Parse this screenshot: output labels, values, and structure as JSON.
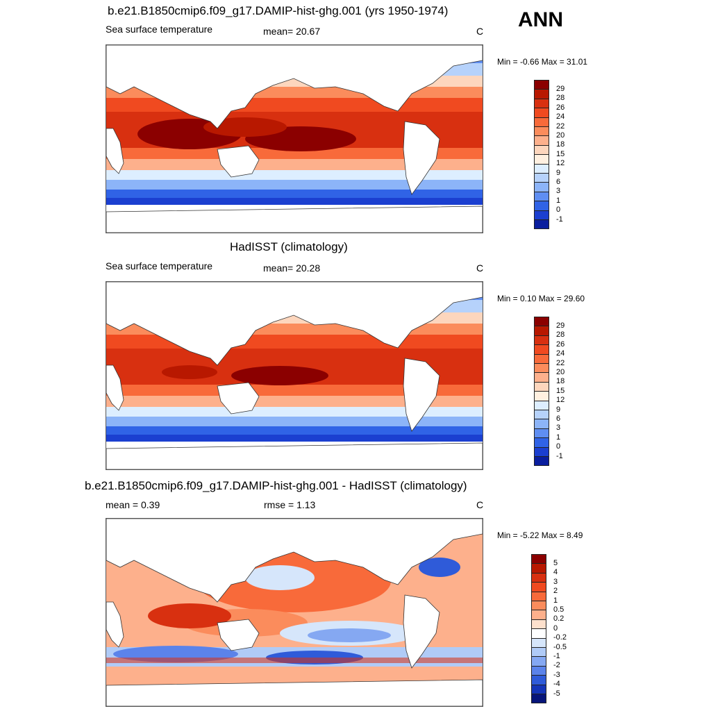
{
  "season": "ANN",
  "panels": [
    {
      "id": "model",
      "title": "b.e21.B1850cmip6.f09_g17.DAMIP-hist-ghg.001 (yrs 1950-1974)",
      "left_label": "Sea surface temperature",
      "mid_label": "mean=  20.67",
      "units": "C",
      "minmax": "Min =  -0.66 Max =  31.01",
      "levels": [
        "29",
        "28",
        "26",
        "24",
        "22",
        "20",
        "18",
        "15",
        "12",
        "9",
        "6",
        "3",
        "1",
        "0",
        "-1"
      ],
      "colors": [
        "#8b0000",
        "#b81800",
        "#d83010",
        "#f04a20",
        "#f86a3a",
        "#fb8c5c",
        "#fdb08c",
        "#fdd6bd",
        "#fff0e0",
        "#ddeeff",
        "#b6d2fb",
        "#8cb4f8",
        "#5f8ef2",
        "#3063e6",
        "#1b3fd0",
        "#0a1e9e"
      ]
    },
    {
      "id": "obs",
      "title": "HadISST (climatology)",
      "left_label": "Sea surface temperature",
      "mid_label": "mean=  20.28",
      "units": "C",
      "minmax": "Min =   0.10 Max =  29.60",
      "levels": [
        "29",
        "28",
        "26",
        "24",
        "22",
        "20",
        "18",
        "15",
        "12",
        "9",
        "6",
        "3",
        "1",
        "0",
        "-1"
      ],
      "colors": [
        "#8b0000",
        "#b81800",
        "#d83010",
        "#f04a20",
        "#f86a3a",
        "#fb8c5c",
        "#fdb08c",
        "#fdd6bd",
        "#fff0e0",
        "#ddeeff",
        "#b6d2fb",
        "#8cb4f8",
        "#5f8ef2",
        "#3063e6",
        "#1b3fd0",
        "#0a1e9e"
      ]
    },
    {
      "id": "diff",
      "title": "b.e21.B1850cmip6.f09_g17.DAMIP-hist-ghg.001 - HadISST (climatology)",
      "left_label": "mean =   0.39",
      "mid_label": "rmse =   1.13",
      "units": "C",
      "minmax": "Min =  -5.22 Max =   8.49",
      "levels": [
        "5",
        "4",
        "3",
        "2",
        "1",
        "0.5",
        "0.2",
        "0",
        "-0.2",
        "-0.5",
        "-1",
        "-2",
        "-3",
        "-4",
        "-5"
      ],
      "colors": [
        "#8b0000",
        "#b81800",
        "#d83010",
        "#f04a20",
        "#f86a3a",
        "#fb8c5c",
        "#fdb08c",
        "#fde0cc",
        "#ffffff",
        "#d6e6fb",
        "#b0cbf7",
        "#85a8f2",
        "#5b83ea",
        "#2f5bd9",
        "#1535b8",
        "#07157a"
      ]
    }
  ]
}
